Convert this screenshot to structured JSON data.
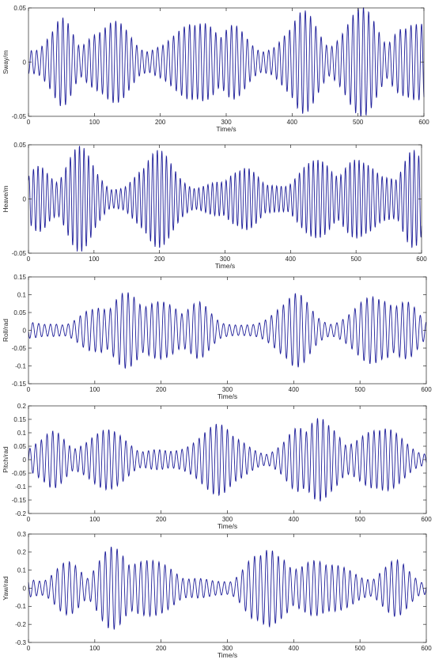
{
  "colors": {
    "series": "#1f1f9a",
    "axes": "#262626",
    "background": "#ffffff"
  },
  "chart_data": [
    {
      "type": "line",
      "xlabel": "Time/s",
      "ylabel": "Sway/m",
      "xlim": [
        0,
        600
      ],
      "ylim": [
        -0.05,
        0.05
      ],
      "xticks": [
        "0",
        "100",
        "200",
        "300",
        "400",
        "500",
        "600"
      ],
      "yticks": [
        "-0.05",
        "0",
        "0.05"
      ],
      "grid": false,
      "waveform": {
        "period_s": 8,
        "envelope_peaks_s": [
          50,
          120,
          245,
          318,
          420,
          500,
          570,
          585
        ],
        "peak_amplitude": 0.048,
        "min_amplitude": 0.005
      }
    },
    {
      "type": "line",
      "xlabel": "Time/s",
      "ylabel": "Heave/m",
      "xlim": [
        0,
        600
      ],
      "ylim": [
        -0.05,
        0.05
      ],
      "xticks": [
        "0",
        "100",
        "200",
        "300",
        "400",
        "500",
        "600"
      ],
      "yticks": [
        "-0.05",
        "0",
        "0.05"
      ],
      "grid": false,
      "waveform": {
        "period_s": 7,
        "envelope_peaks_s": [
          20,
          80,
          200,
          330,
          440,
          515,
          590
        ],
        "peak_amplitude": 0.045,
        "min_amplitude": 0.008
      }
    },
    {
      "type": "line",
      "xlabel": "Time/s",
      "ylabel": "Roll/rad",
      "xlim": [
        0,
        600
      ],
      "ylim": [
        -0.15,
        0.15
      ],
      "xticks": [
        "0",
        "100",
        "200",
        "300",
        "400",
        "500",
        "600"
      ],
      "yticks": [
        "-0.15",
        "-0.1",
        "-0.05",
        "0",
        "0.05",
        "0.1",
        "0.15"
      ],
      "grid": false,
      "waveform": {
        "period_s": 9,
        "envelope_peaks_s": [
          100,
          150,
          200,
          250,
          400,
          520,
          570
        ],
        "peak_amplitude": 0.105,
        "min_amplitude": 0.005
      }
    },
    {
      "type": "line",
      "xlabel": "Time/s",
      "ylabel": "Pitch/rad",
      "xlim": [
        0,
        600
      ],
      "ylim": [
        -0.2,
        0.2
      ],
      "xticks": [
        "0",
        "100",
        "200",
        "300",
        "400",
        "500",
        "600"
      ],
      "yticks": [
        "-0.2",
        "-0.15",
        "-0.1",
        "-0.05",
        "0",
        "0.05",
        "0.1",
        "0.15",
        "0.2"
      ],
      "grid": false,
      "waveform": {
        "period_s": 8.5,
        "envelope_peaks_s": [
          30,
          120,
          280,
          400,
          445,
          520
        ],
        "peak_amplitude": 0.15,
        "min_amplitude": 0.01
      }
    },
    {
      "type": "line",
      "xlabel": "Time/s",
      "ylabel": "Yaw/rad",
      "xlim": [
        0,
        600
      ],
      "ylim": [
        -0.3,
        0.3
      ],
      "xticks": [
        "0",
        "100",
        "200",
        "300",
        "400",
        "500",
        "600"
      ],
      "yticks": [
        "-0.3",
        "-0.2",
        "-0.1",
        "0",
        "0.1",
        "0.2",
        "0.3"
      ],
      "grid": false,
      "waveform": {
        "period_s": 9,
        "envelope_peaks_s": [
          60,
          130,
          180,
          340,
          365,
          440,
          555
        ],
        "peak_amplitude": 0.22,
        "min_amplitude": 0.02
      }
    }
  ]
}
